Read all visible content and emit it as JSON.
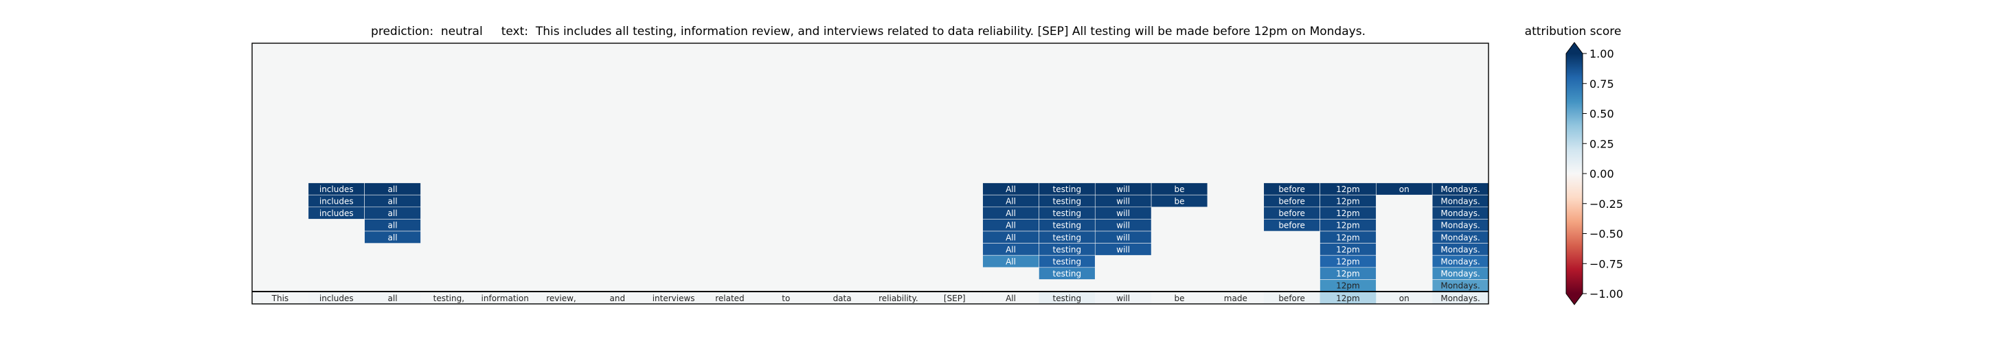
{
  "title_parts": {
    "prediction_label": "prediction:",
    "prediction": "neutral",
    "text_label": "text:",
    "text": "This includes all testing, information review, and interviews related to data reliability. [SEP] All testing will be made before 12pm on Mondays."
  },
  "colorbar": {
    "title": "attribution score",
    "ticks": [
      "1.00",
      "0.75",
      "0.50",
      "0.25",
      "0.00",
      "−0.25",
      "−0.50",
      "−0.75",
      "−1.00"
    ],
    "tick_values": [
      1.0,
      0.75,
      0.5,
      0.25,
      0.0,
      -0.25,
      -0.5,
      -0.75,
      -1.0
    ],
    "extend": "both",
    "colormap": "RdBu"
  },
  "chart_data": {
    "type": "heatmap",
    "tokens": [
      "This",
      "includes",
      "all",
      "testing,",
      "information",
      "review,",
      "and",
      "interviews",
      "related",
      "to",
      "data",
      "reliability.",
      "[SEP]",
      "All",
      "testing",
      "will",
      "be",
      "made",
      "before",
      "12pm",
      "on",
      "Mondays."
    ],
    "rows": [
      {
        "includes": 0.97,
        "all": 0.97,
        "All": 0.97,
        "testing": 0.97,
        "will": 0.97,
        "be": 0.97,
        "before": 0.97,
        "12pm": 0.97,
        "on": 0.97,
        "Mondays.": 0.97
      },
      {
        "includes": 0.95,
        "all": 0.95,
        "All": 0.95,
        "testing": 0.95,
        "will": 0.95,
        "be": 0.95,
        "before": 0.95,
        "12pm": 0.95,
        "Mondays.": 0.95
      },
      {
        "includes": 0.93,
        "all": 0.93,
        "All": 0.93,
        "testing": 0.93,
        "will": 0.93,
        "before": 0.93,
        "12pm": 0.93,
        "Mondays.": 0.93
      },
      {
        "all": 0.9,
        "All": 0.9,
        "testing": 0.9,
        "will": 0.9,
        "before": 0.9,
        "12pm": 0.9,
        "Mondays.": 0.9
      },
      {
        "all": 0.87,
        "All": 0.87,
        "testing": 0.87,
        "will": 0.87,
        "12pm": 0.87,
        "Mondays.": 0.87
      },
      {
        "All": 0.85,
        "testing": 0.85,
        "will": 0.85,
        "12pm": 0.85,
        "Mondays.": 0.85
      },
      {
        "All": 0.65,
        "testing": 0.82,
        "12pm": 0.8,
        "Mondays.": 0.78
      },
      {
        "testing": 0.68,
        "12pm": 0.68,
        "Mondays.": 0.63
      },
      {
        "12pm": 0.6,
        "Mondays.": 0.55
      }
    ],
    "base_row": [
      0.02,
      0.03,
      0.03,
      0.02,
      0.02,
      0.02,
      0.02,
      0.02,
      0.02,
      0.02,
      0.02,
      0.02,
      0.02,
      0.02,
      0.08,
      0.04,
      0.02,
      0.02,
      0.05,
      0.3,
      0.05,
      0.08
    ],
    "vmin": -1.0,
    "vmax": 1.0
  }
}
